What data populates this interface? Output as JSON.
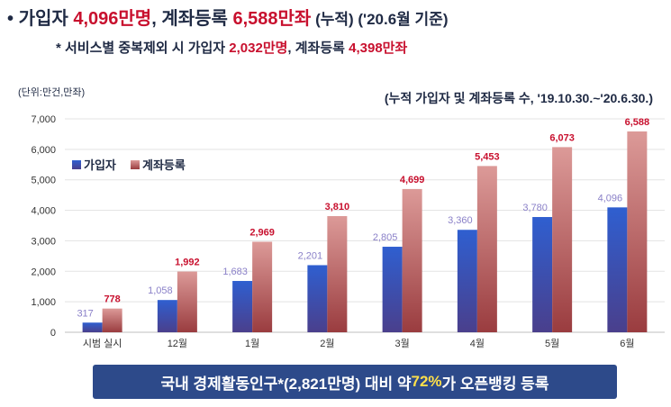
{
  "headline": {
    "bullet": "•",
    "prefix": "가입자 ",
    "subscribers": "4,096만명",
    "mid": ", 계좌등록 ",
    "accounts": "6,588만좌",
    "suffix": " (누적) ('20.6월 기준)"
  },
  "subline": {
    "prefix": "* 서비스별 중복제외 시 가입자 ",
    "subscribers": "2,032만명",
    "mid": ", 계좌등록 ",
    "accounts": "4,398만좌"
  },
  "banner": {
    "prefix": "국내 경제활동인구*(2,821만명) 대비 약 ",
    "highlight": "72%",
    "suffix": "가 오픈뱅킹 등록"
  },
  "chart_data": {
    "type": "bar",
    "title": "(누적 가입자 및 계좌등록 수, '19.10.30.~'20.6.30.)",
    "unit_label": "(단위:만건,만좌)",
    "categories": [
      "시범 실시",
      "12월",
      "1월",
      "2월",
      "3월",
      "4월",
      "5월",
      "6월"
    ],
    "series": [
      {
        "name": "가입자",
        "values": [
          317,
          1058,
          1683,
          2201,
          2805,
          3360,
          3780,
          4096
        ],
        "labels": [
          "317",
          "1,058",
          "1,683",
          "2,201",
          "2,805",
          "3,360",
          "3,780",
          "4,096"
        ],
        "color": "#3a5fc4",
        "label_color": "#8a80c8"
      },
      {
        "name": "계좌등록",
        "values": [
          778,
          1992,
          2969,
          3810,
          4699,
          5453,
          6073,
          6588
        ],
        "labels": [
          "778",
          "1,992",
          "2,969",
          "3,810",
          "4,699",
          "5,453",
          "6,073",
          "6,588"
        ],
        "color": "#d9908e",
        "label_color": "#c8102e"
      }
    ],
    "ylim": [
      0,
      7000
    ],
    "yticks": [
      0,
      1000,
      2000,
      3000,
      4000,
      5000,
      6000,
      7000
    ],
    "ytick_labels": [
      "0",
      "1,000",
      "2,000",
      "3,000",
      "4,000",
      "5,000",
      "6,000",
      "7,000"
    ],
    "legend_position": "top-left",
    "grid": true
  }
}
